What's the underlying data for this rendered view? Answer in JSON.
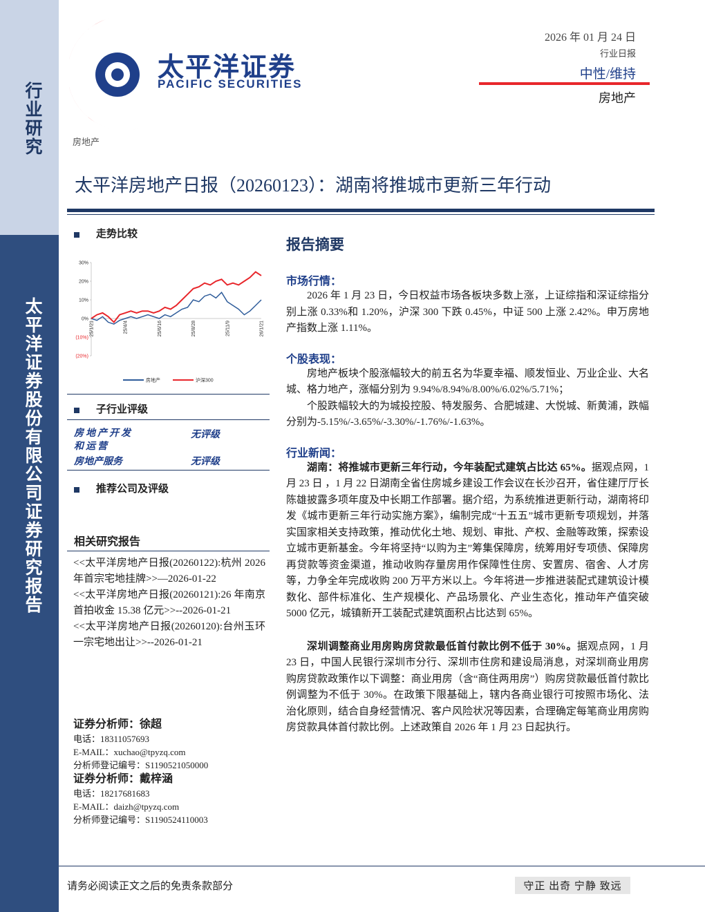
{
  "header": {
    "logo_cn": "太平洋证券",
    "logo_en": "PACIFIC SECURITIES",
    "date": "2026 年 01 月 24 日",
    "report_type": "行业日报",
    "rating": "中性/维持",
    "sector": "房地产"
  },
  "sidebar": {
    "top": "行业研究",
    "bottom": "太平洋证券股份有限公司证券研究报告"
  },
  "breadcrumb": "房地产",
  "title": "太平洋房地产日报（20260123）：湖南将推城市更新三年行动",
  "trend_title": "走势比较",
  "chart_data": {
    "type": "line",
    "categories": [
      "25/1/21",
      null,
      null,
      null,
      null,
      null,
      "25/4/4",
      null,
      null,
      null,
      null,
      null,
      "25/6/16",
      null,
      null,
      null,
      null,
      null,
      "25/8/28",
      null,
      null,
      null,
      null,
      null,
      "25/11/9",
      null,
      null,
      null,
      null,
      null,
      "26/1/21"
    ],
    "series": [
      {
        "name": "房地产",
        "color": "#2e5c9a",
        "values": [
          0,
          -1,
          1,
          -2,
          -3,
          -1,
          0,
          1,
          0,
          1,
          2,
          1,
          0,
          2,
          1,
          3,
          5,
          6,
          10,
          9,
          12,
          13,
          11,
          14,
          9,
          7,
          5,
          2,
          4,
          7,
          10
        ]
      },
      {
        "name": "沪深300",
        "color": "#e8262b",
        "values": [
          0,
          2,
          3,
          1,
          -2,
          2,
          3,
          4,
          3,
          4,
          4,
          3,
          4,
          6,
          5,
          7,
          10,
          13,
          16,
          17,
          19,
          18,
          20,
          21,
          18,
          19,
          18,
          20,
          22,
          25,
          23
        ]
      }
    ],
    "ylim": [
      -20,
      30
    ],
    "yticks": [
      {
        "value": 30,
        "label": "30%"
      },
      {
        "value": 20,
        "label": "20%"
      },
      {
        "value": 10,
        "label": "10%"
      },
      {
        "value": 0,
        "label": "0%"
      },
      {
        "value": -10,
        "label": "(10%)"
      },
      {
        "value": -20,
        "label": "(20%)"
      }
    ]
  },
  "sub_industry": {
    "title": "子行业评级",
    "rows": [
      [
        "房地产开发和运营",
        "无评级"
      ],
      [
        "房地产服务",
        "无评级"
      ]
    ]
  },
  "recommended_title": "推荐公司及评级",
  "related": {
    "title": "相关研究报告",
    "items": [
      "<<太平洋房地产日报(20260122):杭州 2026 年首宗宅地挂牌>>—2026-01-22",
      "<<太平洋房地产日报(20260121):26 年南京首拍收金 15.38 亿元>>--2026-01-21",
      "<<太平洋房地产日报(20260120):台州玉环一宗宅地出让>>--2026-01-21"
    ]
  },
  "analysts": [
    {
      "name": "证券分析师：徐超",
      "phone": "电话：18311057693",
      "email": "E-MAIL：xuchao@tpyzq.com",
      "reg": "分析师登记编号：S1190521050000"
    },
    {
      "name": "证券分析师：戴梓涵",
      "phone": "电话：18217681683",
      "email": "E-MAIL：daizh@tpyzq.com",
      "reg": "分析师登记编号：S1190524110003"
    }
  ],
  "abstract": {
    "title": "报告摘要",
    "market": {
      "heading": "市场行情：",
      "text": "2026 年 1 月 23 日，今日权益市场各板块多数上涨，上证综指和深证综指分别上涨 0.33%和 1.20%，沪深 300 下跌 0.45%，中证 500 上涨 2.42%。申万房地产指数上涨 1.11%。"
    },
    "stocks": {
      "heading": "个股表现：",
      "paragraphs": [
        "房地产板块个股涨幅较大的前五名为华夏幸福、顺发恒业、万业企业、大名城、格力地产，涨幅分别为 9.94%/8.94%/8.00%/6.02%/5.71%；",
        "个股跌幅较大的为城投控股、特发服务、合肥城建、大悦城、新黄浦，跌幅分别为-5.15%/-3.65%/-3.30%/-1.76%/-1.63%。"
      ]
    },
    "news": {
      "heading": "行业新闻：",
      "items": [
        {
          "lead": "湖南：将推城市更新三年行动，今年装配式建筑占比达 65%。",
          "body": "据观点网，1 月 23 日 ，1 月 22 日湖南全省住房城乡建设工作会议在长沙召开，省住建厅厅长陈雄披露多项年度及中长期工作部署。据介绍，为系统推进更新行动，湖南将印发《城市更新三年行动实施方案》，编制完成“十五五”城市更新专项规划，并落实国家相关支持政策，推动优化土地、规划、审批、产权、金融等政策，探索设立城市更新基金。今年将坚持“以购为主”筹集保障房，统筹用好专项债、保障房再贷款等资金渠道，推动收购存量房用作保障性住房、安置房、宿舍、人才房等，力争全年完成收购 200 万平方米以上。今年将进一步推进装配式建筑设计模数化、部件标准化、生产规模化、产品场景化、产业生态化，推动年产值突破 5000 亿元，城镇新开工装配式建筑面积占比达到 65%。"
        },
        {
          "lead": "深圳调整商业用房购房贷款最低首付款比例不低于 30%。",
          "body": "据观点网，1 月 23 日，中国人民银行深圳市分行、深圳市住房和建设局消息，对深圳商业用房购房贷款政策作以下调整：商业用房（含“商住两用房”）购房贷款最低首付款比例调整为不低于 30%。在政策下限基础上，辖内各商业银行可按照市场化、法治化原则，结合自身经营情况、客户风险状况等因素，合理确定每笔商业用房购房贷款具体首付款比例。上述政策自 2026 年 1 月 23 日起执行。"
        }
      ]
    }
  },
  "footer": {
    "disclaimer": "请务必阅读正文之后的免责条款部分",
    "motto": "守正 出奇 宁静 致远"
  }
}
